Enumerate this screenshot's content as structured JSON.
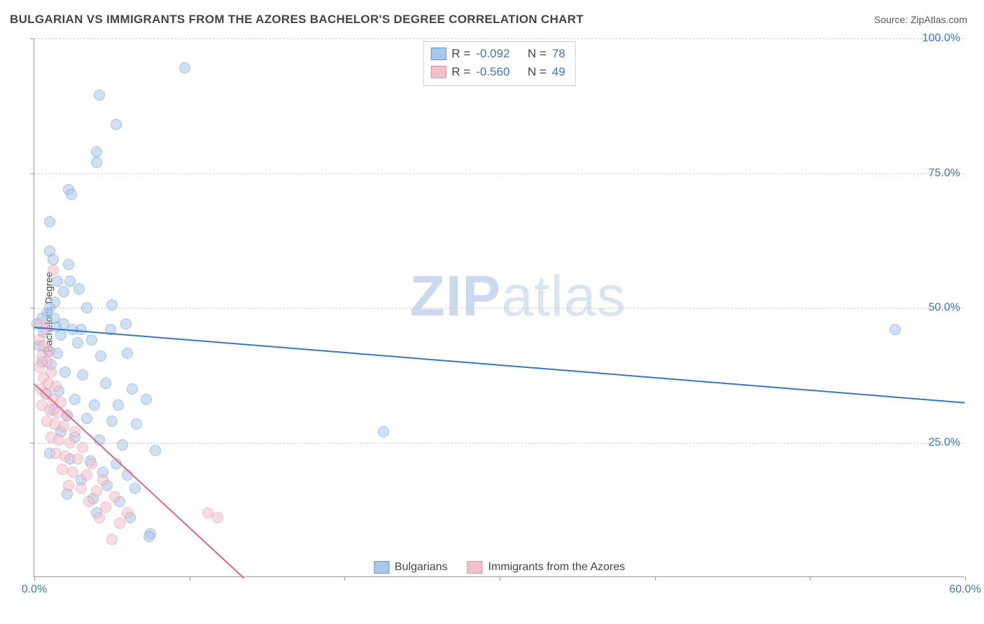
{
  "title": "BULGARIAN VS IMMIGRANTS FROM THE AZORES BACHELOR'S DEGREE CORRELATION CHART",
  "source_label": "Source:",
  "source_name": "ZipAtlas.com",
  "y_axis_label": "Bachelor's Degree",
  "watermark_a": "ZIP",
  "watermark_b": "atlas",
  "chart": {
    "type": "scatter",
    "xlim": [
      0,
      60
    ],
    "ylim": [
      0,
      100
    ],
    "x_ticks": [
      0,
      10,
      20,
      30,
      40,
      50,
      60
    ],
    "x_tick_labels": [
      "0.0%",
      "",
      "",
      "",
      "",
      "",
      "60.0%"
    ],
    "y_ticks": [
      25,
      50,
      75,
      100
    ],
    "y_tick_labels": [
      "25.0%",
      "50.0%",
      "75.0%",
      "100.0%"
    ],
    "grid_color": "#cccccc",
    "axis_color": "#999999",
    "background_color": "#ffffff",
    "tick_label_color": "#3b74c9",
    "tick_label_fontsize": 16,
    "title_color": "#444444",
    "title_fontsize": 17,
    "marker_radius": 8,
    "marker_opacity": 0.55
  },
  "series": [
    {
      "name": "Bulgarians",
      "color_fill": "#a9c7ea",
      "color_stroke": "#5f93d1",
      "trend_color": "#2f77d0",
      "R": "-0.092",
      "N": "78",
      "trend": {
        "x1": 0,
        "y1": 46.5,
        "x2": 60,
        "y2": 32.5
      },
      "points": [
        [
          9.7,
          94.5
        ],
        [
          4.2,
          89.5
        ],
        [
          5.3,
          84
        ],
        [
          4.0,
          79
        ],
        [
          4.0,
          77
        ],
        [
          2.2,
          72
        ],
        [
          2.4,
          71
        ],
        [
          1.0,
          66
        ],
        [
          1.0,
          60.5
        ],
        [
          1.2,
          59
        ],
        [
          2.2,
          58
        ],
        [
          1.5,
          55
        ],
        [
          2.3,
          55
        ],
        [
          1.9,
          53
        ],
        [
          2.9,
          53.5
        ],
        [
          5.0,
          50.5
        ],
        [
          3.4,
          50
        ],
        [
          1.3,
          51
        ],
        [
          0.8,
          49
        ],
        [
          0.5,
          48
        ],
        [
          1.4,
          46.5
        ],
        [
          2.5,
          46
        ],
        [
          0.6,
          45.5
        ],
        [
          1.7,
          45
        ],
        [
          2.8,
          43.5
        ],
        [
          3.7,
          44
        ],
        [
          0.9,
          42
        ],
        [
          1.5,
          41.5
        ],
        [
          4.3,
          41
        ],
        [
          6.0,
          41.5
        ],
        [
          1.1,
          39.5
        ],
        [
          2.0,
          38
        ],
        [
          3.1,
          37.5
        ],
        [
          4.6,
          36
        ],
        [
          6.3,
          35
        ],
        [
          1.6,
          34.5
        ],
        [
          0.8,
          34
        ],
        [
          2.6,
          33
        ],
        [
          3.9,
          32
        ],
        [
          5.4,
          32
        ],
        [
          7.2,
          33
        ],
        [
          1.2,
          31
        ],
        [
          2.1,
          30
        ],
        [
          3.4,
          29.5
        ],
        [
          5.0,
          29
        ],
        [
          6.6,
          28.5
        ],
        [
          22.5,
          27
        ],
        [
          1.7,
          27
        ],
        [
          2.6,
          26
        ],
        [
          4.2,
          25.5
        ],
        [
          5.7,
          24.5
        ],
        [
          7.8,
          23.5
        ],
        [
          1.0,
          23
        ],
        [
          2.3,
          22
        ],
        [
          3.6,
          21.5
        ],
        [
          5.3,
          21
        ],
        [
          4.4,
          19.5
        ],
        [
          6.0,
          19
        ],
        [
          3.0,
          18
        ],
        [
          4.7,
          17
        ],
        [
          6.5,
          16.5
        ],
        [
          2.1,
          15.5
        ],
        [
          3.8,
          14.5
        ],
        [
          5.5,
          14
        ],
        [
          4.0,
          12
        ],
        [
          6.2,
          11
        ],
        [
          7.5,
          8
        ],
        [
          7.4,
          7.5
        ],
        [
          4.9,
          46
        ],
        [
          5.9,
          47
        ],
        [
          3.0,
          46
        ],
        [
          0.2,
          47
        ],
        [
          0.3,
          43
        ],
        [
          0.5,
          40
        ],
        [
          1.9,
          47
        ],
        [
          1.0,
          50
        ],
        [
          1.3,
          48
        ],
        [
          55.5,
          46
        ]
      ]
    },
    {
      "name": "Immigrants from the Azores",
      "color_fill": "#f2c0cb",
      "color_stroke": "#e68aa0",
      "trend_color": "#e26184",
      "R": "-0.560",
      "N": "49",
      "trend": {
        "x1": 0,
        "y1": 36,
        "x2": 13.5,
        "y2": 0
      },
      "points": [
        [
          1.2,
          57
        ],
        [
          0.4,
          47
        ],
        [
          0.7,
          46
        ],
        [
          0.3,
          44
        ],
        [
          0.6,
          43
        ],
        [
          1.0,
          42
        ],
        [
          0.5,
          41
        ],
        [
          0.8,
          40
        ],
        [
          0.3,
          39
        ],
        [
          1.1,
          38
        ],
        [
          0.6,
          37
        ],
        [
          0.9,
          36
        ],
        [
          1.4,
          35.5
        ],
        [
          0.4,
          35
        ],
        [
          0.7,
          34
        ],
        [
          1.2,
          33
        ],
        [
          1.7,
          32.5
        ],
        [
          0.5,
          32
        ],
        [
          1.0,
          31
        ],
        [
          1.5,
          30.5
        ],
        [
          2.1,
          30
        ],
        [
          0.8,
          29
        ],
        [
          1.3,
          28.5
        ],
        [
          1.9,
          28
        ],
        [
          2.6,
          27
        ],
        [
          1.1,
          26
        ],
        [
          1.6,
          25.5
        ],
        [
          2.3,
          25
        ],
        [
          3.1,
          24
        ],
        [
          1.4,
          23
        ],
        [
          2.0,
          22.5
        ],
        [
          2.8,
          22
        ],
        [
          3.7,
          21
        ],
        [
          1.8,
          20
        ],
        [
          2.5,
          19.5
        ],
        [
          3.4,
          19
        ],
        [
          4.4,
          18
        ],
        [
          2.2,
          17
        ],
        [
          3.0,
          16.5
        ],
        [
          4.0,
          16
        ],
        [
          5.2,
          15
        ],
        [
          3.5,
          14
        ],
        [
          4.6,
          13
        ],
        [
          6.0,
          12
        ],
        [
          4.2,
          11
        ],
        [
          5.5,
          10
        ],
        [
          11.2,
          12
        ],
        [
          11.8,
          11
        ],
        [
          5.0,
          7
        ]
      ]
    }
  ],
  "legend_top": {
    "r_label": "R =",
    "n_label": "N ="
  },
  "legend_bottom_labels": [
    "Bulgarians",
    "Immigrants from the Azores"
  ]
}
